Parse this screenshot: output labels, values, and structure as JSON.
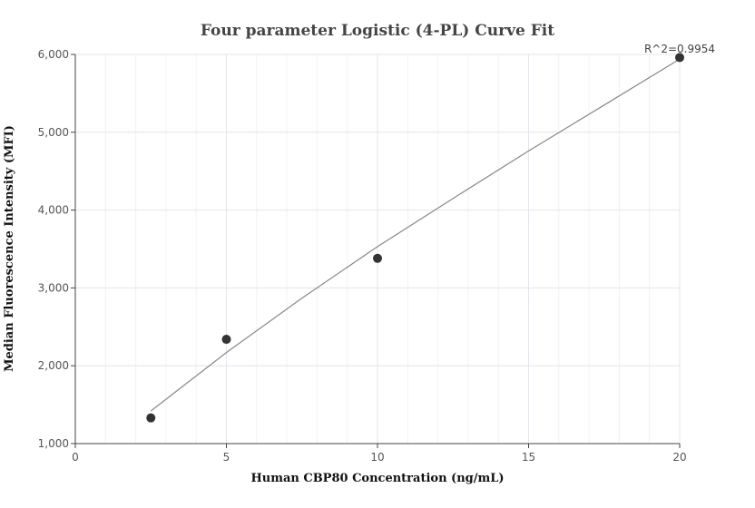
{
  "chart_data": {
    "type": "scatter",
    "title": "Four parameter Logistic (4-PL) Curve Fit",
    "xlabel": "Human CBP80 Concentration (ng/mL)",
    "ylabel": "Median Fluorescence Intensity (MFI)",
    "xlim": [
      0,
      20
    ],
    "ylim": [
      1000,
      6000
    ],
    "x_ticks": [
      0,
      5,
      10,
      15,
      20
    ],
    "x_tick_labels": [
      "0",
      "5",
      "10",
      "15",
      "20"
    ],
    "y_ticks": [
      1000,
      2000,
      3000,
      4000,
      5000,
      6000
    ],
    "y_tick_labels": [
      "1,000",
      "2,000",
      "3,000",
      "4,000",
      "5,000",
      "6,000"
    ],
    "grid": true,
    "series": [
      {
        "points": [
          {
            "x": 2.5,
            "y": 1330
          },
          {
            "x": 5,
            "y": 2340
          },
          {
            "x": 10,
            "y": 3380
          },
          {
            "x": 20,
            "y": 5960
          }
        ]
      }
    ],
    "fit_curve": [
      {
        "x": 2.5,
        "y": 1420
      },
      {
        "x": 5,
        "y": 2170
      },
      {
        "x": 7.5,
        "y": 2870
      },
      {
        "x": 10,
        "y": 3530
      },
      {
        "x": 12.5,
        "y": 4150
      },
      {
        "x": 15,
        "y": 4760
      },
      {
        "x": 17.5,
        "y": 5350
      },
      {
        "x": 20,
        "y": 5940
      }
    ],
    "annotation": "R^2=0.9954",
    "colors": {
      "points": "#333333",
      "curve": "#888888"
    }
  }
}
